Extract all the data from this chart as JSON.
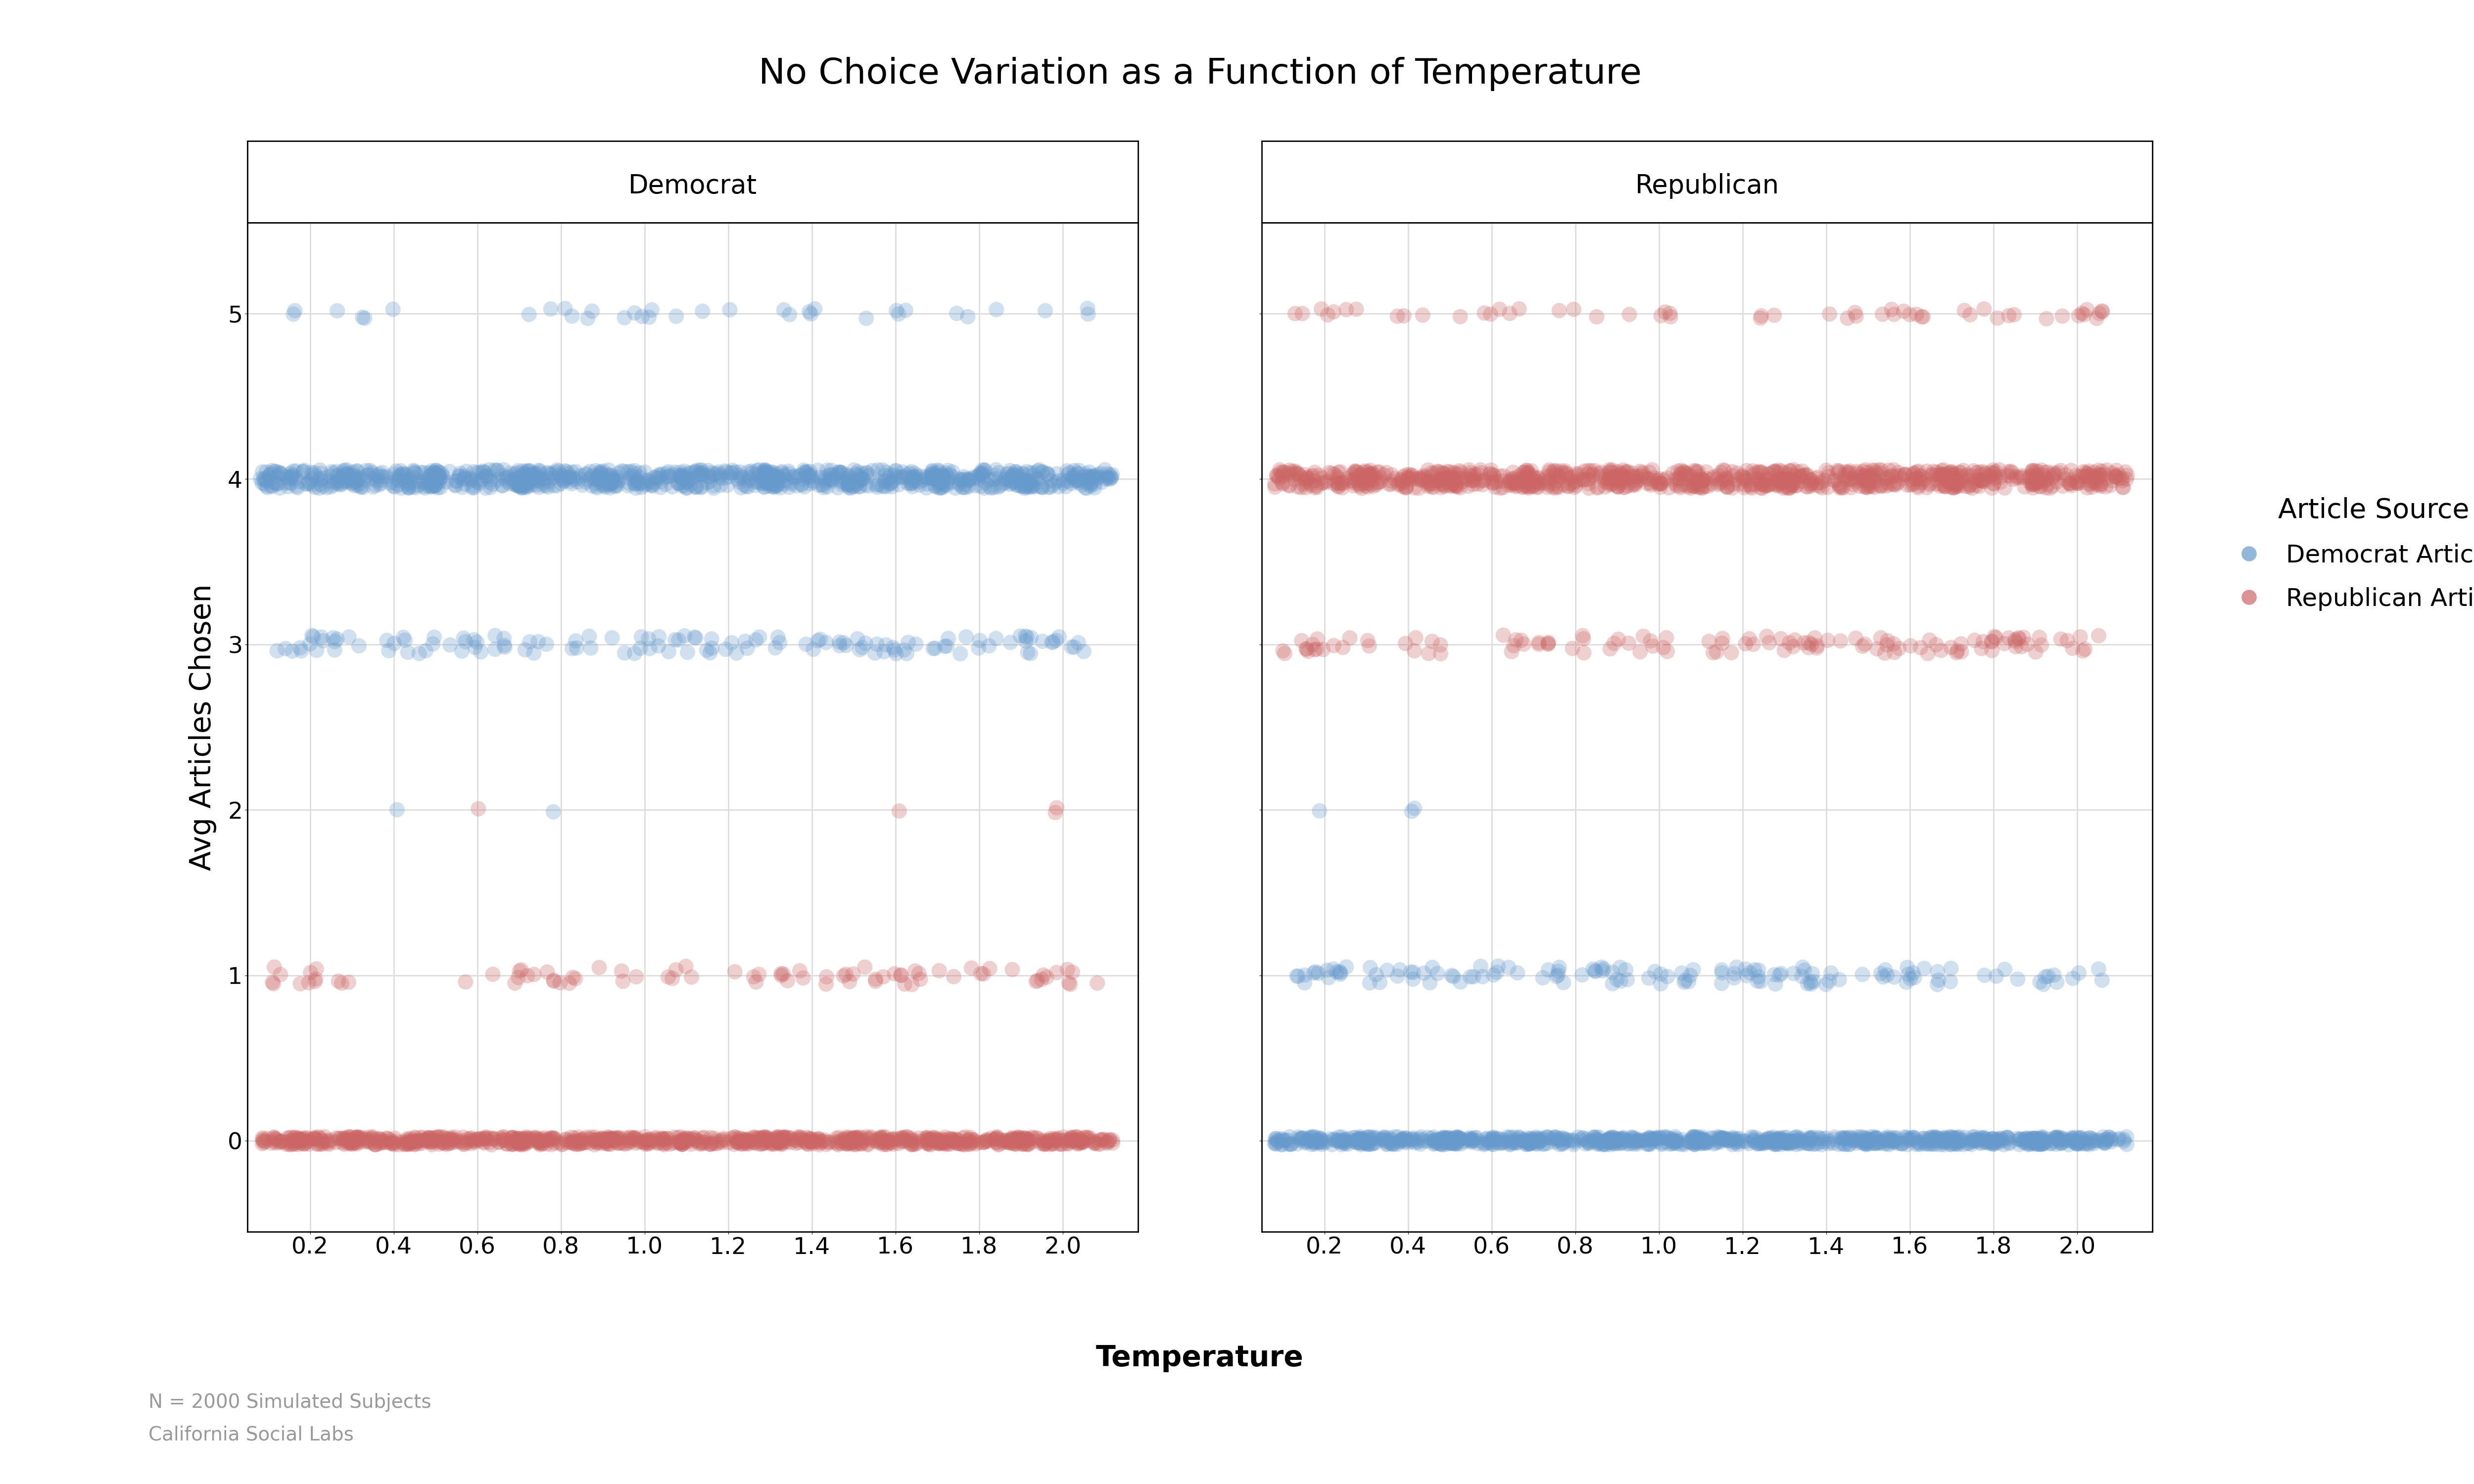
{
  "title": "No Choice Variation as a Function of Temperature",
  "xlabel": "Temperature",
  "ylabel": "Avg Articles Chosen",
  "panels": [
    "Democrat",
    "Republican"
  ],
  "x_ticks": [
    0.2,
    0.4,
    0.6,
    0.8,
    1.0,
    1.2,
    1.4,
    1.6,
    1.8,
    2.0
  ],
  "y_ticks": [
    0,
    1,
    2,
    3,
    4,
    5
  ],
  "y_lim": [
    -0.55,
    5.55
  ],
  "x_lim": [
    0.05,
    2.18
  ],
  "blue_color": "#6699CC",
  "red_color": "#CC6666",
  "title_fontsize": 52,
  "label_fontsize": 42,
  "tick_fontsize": 34,
  "panel_fontsize": 38,
  "legend_fontsize": 36,
  "legend_title_fontsize": 40,
  "footnote_fontsize": 28,
  "background_color": "#ffffff",
  "grid_color": "#dddddd",
  "legend_title": "Article Source",
  "legend_dem": "Democrat Articles",
  "legend_rep": "Republican Articles",
  "footnote_line1": "N = 2000 Simulated Subjects",
  "footnote_line2": "California Social Labs"
}
